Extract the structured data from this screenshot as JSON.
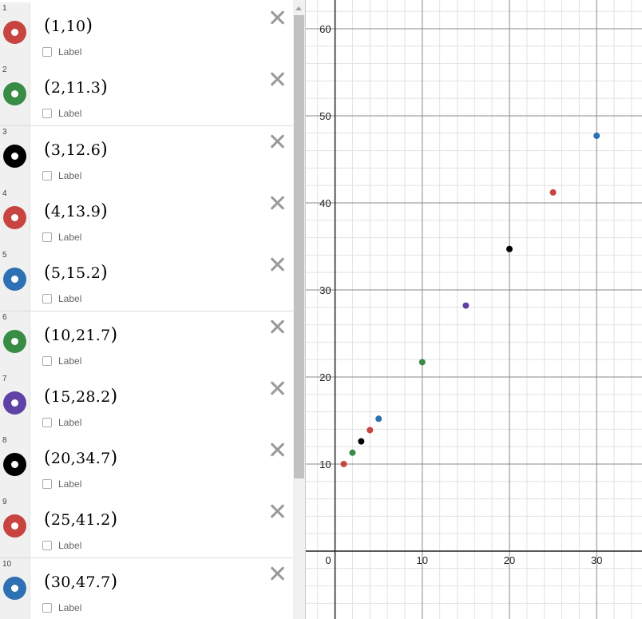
{
  "expressions": [
    {
      "index": "1",
      "text": "1,10",
      "color": "#c74440",
      "label_text": "Label"
    },
    {
      "index": "2",
      "text": "2,11.3",
      "color": "#388c46",
      "label_text": "Label"
    },
    {
      "index": "3",
      "text": "3,12.6",
      "color": "#000000",
      "label_text": "Label"
    },
    {
      "index": "4",
      "text": "4,13.9",
      "color": "#c74440",
      "label_text": "Label"
    },
    {
      "index": "5",
      "text": "5,15.2",
      "color": "#2d70b3",
      "label_text": "Label"
    },
    {
      "index": "6",
      "text": "10,21.7",
      "color": "#388c46",
      "label_text": "Label"
    },
    {
      "index": "7",
      "text": "15,28.2",
      "color": "#6042a6",
      "label_text": "Label"
    },
    {
      "index": "8",
      "text": "20,34.7",
      "color": "#000000",
      "label_text": "Label"
    },
    {
      "index": "9",
      "text": "25,41.2",
      "color": "#c74440",
      "label_text": "Label"
    },
    {
      "index": "10",
      "text": "30,47.7",
      "color": "#2d70b3",
      "label_text": "Label"
    }
  ],
  "chart_data": {
    "type": "scatter",
    "points": [
      {
        "x": 1,
        "y": 10,
        "color": "#c74440"
      },
      {
        "x": 2,
        "y": 11.3,
        "color": "#388c46"
      },
      {
        "x": 3,
        "y": 12.6,
        "color": "#000000"
      },
      {
        "x": 4,
        "y": 13.9,
        "color": "#c74440"
      },
      {
        "x": 5,
        "y": 15.2,
        "color": "#2d70b3"
      },
      {
        "x": 10,
        "y": 21.7,
        "color": "#388c46"
      },
      {
        "x": 15,
        "y": 28.2,
        "color": "#6042a6"
      },
      {
        "x": 20,
        "y": 34.7,
        "color": "#000000"
      },
      {
        "x": 25,
        "y": 41.2,
        "color": "#c74440"
      },
      {
        "x": 30,
        "y": 47.7,
        "color": "#2d70b3"
      }
    ],
    "xlim": [
      -3.35,
      35.2
    ],
    "ylim": [
      -7.8,
      63.3
    ],
    "x_ticks": [
      {
        "value": 10,
        "label": "10"
      },
      {
        "value": 20,
        "label": "20"
      },
      {
        "value": 30,
        "label": "30"
      }
    ],
    "y_ticks": [
      {
        "value": 10,
        "label": "10"
      },
      {
        "value": 20,
        "label": "20"
      },
      {
        "value": 30,
        "label": "30"
      },
      {
        "value": 40,
        "label": "40"
      },
      {
        "value": 50,
        "label": "50"
      },
      {
        "value": 60,
        "label": "60"
      }
    ],
    "origin_label": "0",
    "minor_step": 2,
    "major_step": 10,
    "grid": true
  }
}
